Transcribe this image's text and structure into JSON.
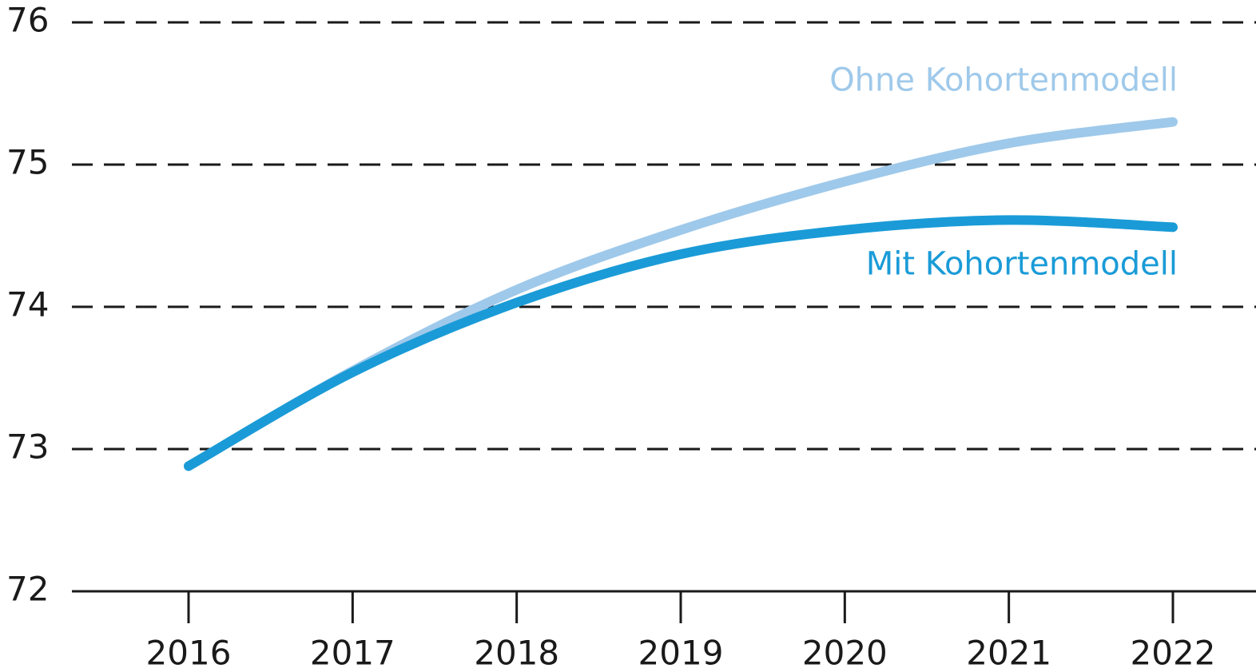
{
  "chart_data": {
    "type": "line",
    "categories": [
      "2016",
      "2017",
      "2018",
      "2019",
      "2020",
      "2021",
      "2022"
    ],
    "series": [
      {
        "name": "Ohne Kohortenmodell",
        "color": "#9fc9ea",
        "values": [
          72.88,
          73.55,
          74.12,
          74.54,
          74.88,
          75.15,
          75.3
        ]
      },
      {
        "name": "Mit Kohortenmodell",
        "color": "#1a9bd7",
        "values": [
          72.88,
          73.54,
          74.03,
          74.37,
          74.54,
          74.61,
          74.56
        ]
      }
    ],
    "ylim": [
      72,
      76
    ],
    "yticks": [
      72,
      73,
      74,
      75,
      76
    ],
    "grid": true
  }
}
